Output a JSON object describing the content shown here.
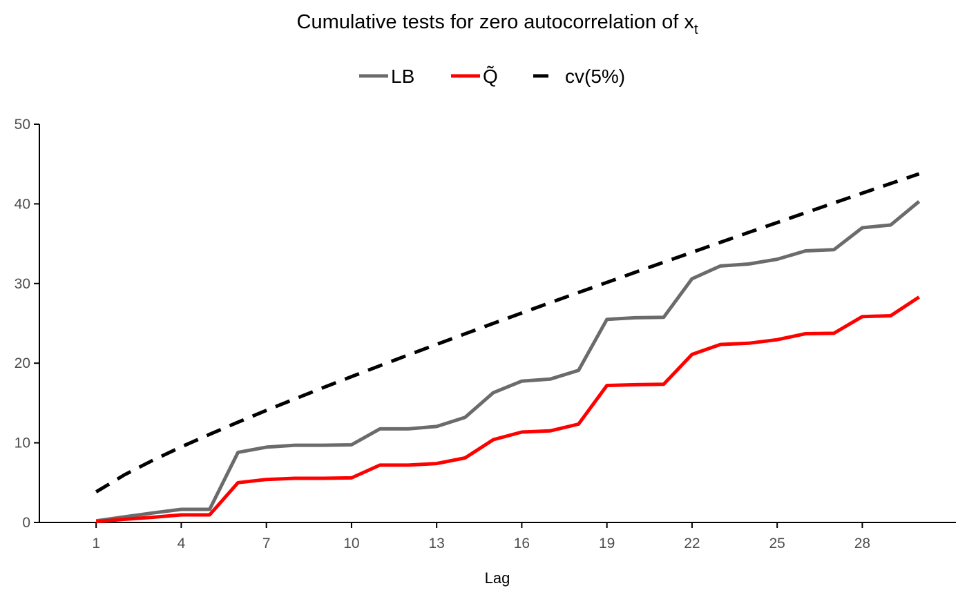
{
  "chart_data": {
    "type": "line",
    "title": "Cumulative tests for zero autocorrelation of x",
    "title_subscript": "t",
    "xlabel": "Lag",
    "ylabel": "",
    "xlim": [
      -1,
      31.3
    ],
    "ylim": [
      0,
      50
    ],
    "x_ticks": [
      1,
      4,
      7,
      10,
      13,
      16,
      19,
      22,
      25,
      28
    ],
    "y_ticks": [
      0,
      10,
      20,
      30,
      40,
      50
    ],
    "grid": false,
    "legend_position": "top",
    "x": [
      1,
      2,
      3,
      4,
      5,
      6,
      7,
      8,
      9,
      10,
      11,
      12,
      13,
      14,
      15,
      16,
      17,
      18,
      19,
      20,
      21,
      22,
      23,
      24,
      25,
      26,
      27,
      28,
      29,
      30
    ],
    "series": [
      {
        "name": "LB",
        "color": "#6b6b6b",
        "style": "solid",
        "values": [
          0.2,
          0.7,
          1.2,
          1.65,
          1.65,
          8.8,
          9.45,
          9.7,
          9.7,
          9.75,
          11.75,
          11.75,
          12.05,
          13.2,
          16.3,
          17.75,
          18.0,
          19.1,
          25.5,
          25.7,
          25.75,
          30.6,
          32.2,
          32.45,
          33.05,
          34.1,
          34.25,
          37.0,
          37.35,
          40.3
        ]
      },
      {
        "name": "Q̃",
        "color": "#ff0000",
        "style": "solid",
        "values": [
          0.1,
          0.4,
          0.65,
          0.95,
          0.95,
          5.0,
          5.4,
          5.55,
          5.55,
          5.6,
          7.2,
          7.2,
          7.4,
          8.1,
          10.4,
          11.35,
          11.5,
          12.35,
          17.2,
          17.3,
          17.35,
          21.1,
          22.35,
          22.5,
          22.95,
          23.7,
          23.75,
          25.85,
          25.95,
          28.3
        ]
      },
      {
        "name": "cv(5%)",
        "color": "#000000",
        "style": "dashed",
        "values": [
          3.84,
          5.99,
          7.81,
          9.49,
          11.07,
          12.59,
          14.07,
          15.51,
          16.92,
          18.31,
          19.68,
          21.03,
          22.36,
          23.68,
          25.0,
          26.3,
          27.59,
          28.87,
          30.14,
          31.41,
          32.67,
          33.92,
          35.17,
          36.42,
          37.65,
          38.89,
          40.11,
          41.34,
          42.56,
          43.77
        ]
      }
    ]
  }
}
